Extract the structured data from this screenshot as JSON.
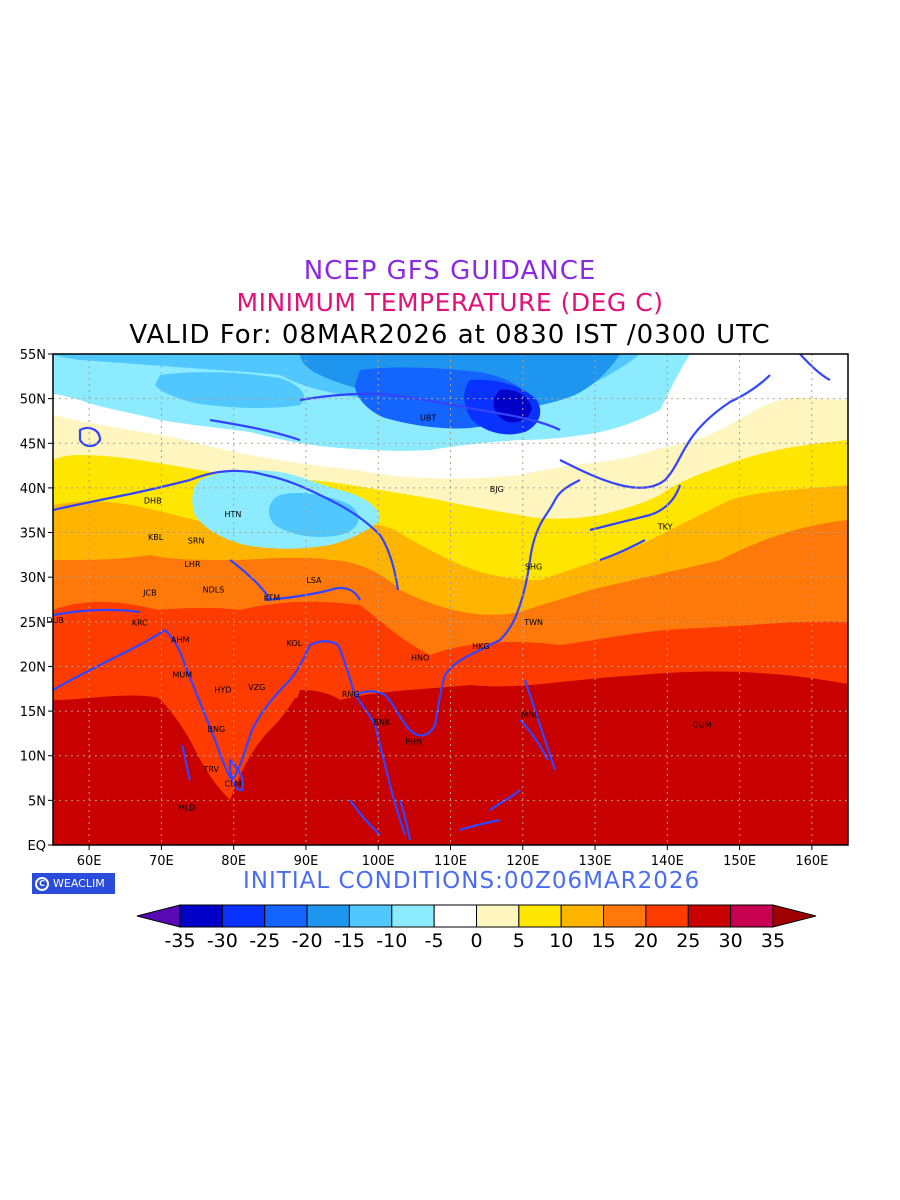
{
  "header": {
    "line1": "NCEP GFS GUIDANCE",
    "line2": "MINIMUM TEMPERATURE (DEG C)",
    "line3": "VALID For: 08MAR2026 at 0830 IST /0300 UTC"
  },
  "footer": {
    "logo_text": "WEACLIM",
    "initial_conditions": "INITIAL CONDITIONS:00Z06MAR2026"
  },
  "map": {
    "lon_range": [
      55,
      165
    ],
    "lat_range": [
      0,
      55
    ],
    "lon_ticks": [
      "60E",
      "70E",
      "80E",
      "90E",
      "100E",
      "110E",
      "120E",
      "130E",
      "140E",
      "150E",
      "160E"
    ],
    "lon_tick_values": [
      60,
      70,
      80,
      90,
      100,
      110,
      120,
      130,
      140,
      150,
      160
    ],
    "lat_ticks": [
      "EQ",
      "5N",
      "10N",
      "15N",
      "20N",
      "25N",
      "30N",
      "35N",
      "40N",
      "45N",
      "50N",
      "55N"
    ],
    "lat_tick_values": [
      0,
      5,
      10,
      15,
      20,
      25,
      30,
      35,
      40,
      45,
      50,
      55
    ],
    "coastline_color": "#3344ff",
    "cities": [
      {
        "code": "UBT",
        "lon": 106.9,
        "lat": 47.9
      },
      {
        "code": "BJG",
        "lon": 116.4,
        "lat": 39.9
      },
      {
        "code": "TKY",
        "lon": 139.7,
        "lat": 35.7
      },
      {
        "code": "SHG",
        "lon": 121.5,
        "lat": 31.2
      },
      {
        "code": "TWN",
        "lon": 121.5,
        "lat": 25.0
      },
      {
        "code": "HKG",
        "lon": 114.2,
        "lat": 22.3
      },
      {
        "code": "HNO",
        "lon": 105.8,
        "lat": 21.0
      },
      {
        "code": "MNL",
        "lon": 121.0,
        "lat": 14.6
      },
      {
        "code": "GUM",
        "lon": 144.8,
        "lat": 13.5
      },
      {
        "code": "BNK",
        "lon": 100.5,
        "lat": 13.8
      },
      {
        "code": "PHN",
        "lon": 104.9,
        "lat": 11.6
      },
      {
        "code": "RNG",
        "lon": 96.2,
        "lat": 16.9
      },
      {
        "code": "LSA",
        "lon": 91.1,
        "lat": 29.7
      },
      {
        "code": "KTM",
        "lon": 85.3,
        "lat": 27.7
      },
      {
        "code": "KOL",
        "lon": 88.4,
        "lat": 22.6
      },
      {
        "code": "HTN",
        "lon": 79.9,
        "lat": 37.1
      },
      {
        "code": "DHB",
        "lon": 68.8,
        "lat": 38.6
      },
      {
        "code": "KBL",
        "lon": 69.2,
        "lat": 34.5
      },
      {
        "code": "SRN",
        "lon": 74.8,
        "lat": 34.1
      },
      {
        "code": "LHR",
        "lon": 74.3,
        "lat": 31.5
      },
      {
        "code": "NDLS",
        "lon": 77.2,
        "lat": 28.6
      },
      {
        "code": "JCB",
        "lon": 68.4,
        "lat": 28.3
      },
      {
        "code": "KRC",
        "lon": 67.0,
        "lat": 24.9
      },
      {
        "code": "DUB",
        "lon": 55.3,
        "lat": 25.2
      },
      {
        "code": "AHM",
        "lon": 72.6,
        "lat": 23.0
      },
      {
        "code": "MUM",
        "lon": 72.9,
        "lat": 19.1
      },
      {
        "code": "HYD",
        "lon": 78.5,
        "lat": 17.4
      },
      {
        "code": "VZG",
        "lon": 83.2,
        "lat": 17.7
      },
      {
        "code": "BNG",
        "lon": 77.6,
        "lat": 13.0
      },
      {
        "code": "TRV",
        "lon": 76.9,
        "lat": 8.5
      },
      {
        "code": "CLM",
        "lon": 79.9,
        "lat": 6.9
      },
      {
        "code": "MLD",
        "lon": 73.5,
        "lat": 4.2
      }
    ]
  },
  "colorbar": {
    "labels": [
      "-35",
      "-30",
      "-25",
      "-20",
      "-15",
      "-10",
      "-5",
      "0",
      "5",
      "10",
      "15",
      "20",
      "25",
      "30",
      "35"
    ],
    "colors": [
      "#0000c8",
      "#0a32ff",
      "#1464ff",
      "#1e96f0",
      "#50c8ff",
      "#8cebff",
      "#ffffff",
      "#fff5be",
      "#ffe600",
      "#ffb400",
      "#ff780a",
      "#ff3c00",
      "#c80000",
      "#c80050"
    ],
    "below_color": "#5a0ab4",
    "above_color": "#a00000"
  }
}
